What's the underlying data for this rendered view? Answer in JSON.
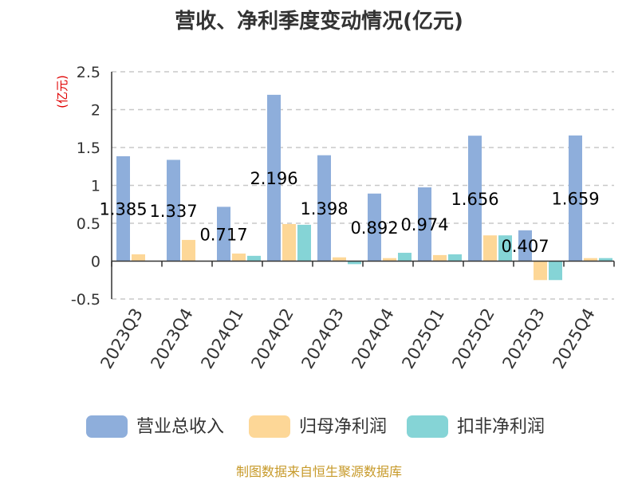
{
  "title": "营收、净利季度变动情况(亿元)",
  "footer": "制图数据来自恒生聚源数据库",
  "chart_data": {
    "type": "bar",
    "title": "营收、净利季度变动情况(亿元)",
    "ylabel": "(亿元)",
    "ylim": [
      -0.5,
      2.5
    ],
    "yticks": [
      "2.5",
      "2",
      "1.5",
      "1",
      "0.5",
      "0",
      "-0.5"
    ],
    "ytick_values": [
      2.5,
      2,
      1.5,
      1,
      0.5,
      0,
      -0.5
    ],
    "grid": true,
    "legend_position": "bottom",
    "categories": [
      "2023Q3",
      "2023Q4",
      "2024Q1",
      "2024Q2",
      "2024Q3",
      "2024Q4",
      "2025Q1",
      "2025Q2",
      "2025Q3",
      "2025Q4"
    ],
    "series": [
      {
        "name": "营业总收入",
        "color": "#8eaedb",
        "values": [
          1.385,
          1.337,
          0.717,
          2.196,
          1.398,
          0.892,
          0.974,
          1.656,
          0.407,
          1.659
        ],
        "labels": [
          "1.385",
          "1.337",
          "0.717",
          "2.196",
          "1.398",
          "0.892",
          "0.974",
          "1.656",
          "0.407",
          "1.659"
        ]
      },
      {
        "name": "归母净利润",
        "color": "#fdd797",
        "values": [
          0.09,
          0.28,
          0.1,
          0.49,
          0.05,
          0.04,
          0.08,
          0.34,
          -0.25,
          0.04
        ]
      },
      {
        "name": "扣非净利润",
        "color": "#85d4d6",
        "values": [
          0.0,
          0.0,
          0.07,
          0.48,
          -0.04,
          0.11,
          0.09,
          0.34,
          -0.25,
          0.04
        ]
      }
    ]
  }
}
